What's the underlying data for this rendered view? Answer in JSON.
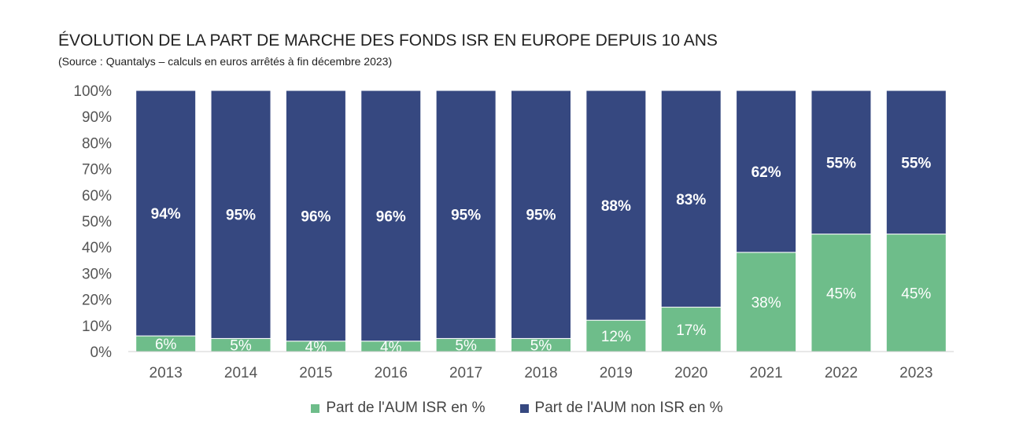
{
  "chart_data": {
    "type": "bar",
    "stacked": true,
    "title": "ÉVOLUTION DE LA PART DE MARCHE DES FONDS ISR EN EUROPE DEPUIS 10 ANS",
    "subtitle": "(Source : Quantalys – calculs en euros arrêtés à fin décembre 2023)",
    "categories": [
      "2013",
      "2014",
      "2015",
      "2016",
      "2017",
      "2018",
      "2019",
      "2020",
      "2021",
      "2022",
      "2023"
    ],
    "series": [
      {
        "name": "Part de l'AUM ISR en %",
        "values": [
          6,
          5,
          4,
          4,
          5,
          5,
          12,
          17,
          38,
          45,
          45
        ],
        "labels": [
          "6%",
          "5%",
          "4%",
          "4%",
          "5%",
          "5%",
          "12%",
          "17%",
          "38%",
          "45%",
          "45%"
        ],
        "color": "#6ebd8a"
      },
      {
        "name": "Part de l'AUM non ISR en %",
        "values": [
          94,
          95,
          96,
          96,
          95,
          95,
          88,
          83,
          62,
          55,
          55
        ],
        "labels": [
          "94%",
          "95%",
          "96%",
          "96%",
          "95%",
          "95%",
          "88%",
          "83%",
          "62%",
          "55%",
          "55%"
        ],
        "color": "#364880"
      }
    ],
    "yticks": [
      "0%",
      "10%",
      "20%",
      "30%",
      "40%",
      "50%",
      "60%",
      "70%",
      "80%",
      "90%",
      "100%"
    ],
    "ylim": [
      0,
      100
    ],
    "grid": false,
    "legend_position": "bottom"
  }
}
